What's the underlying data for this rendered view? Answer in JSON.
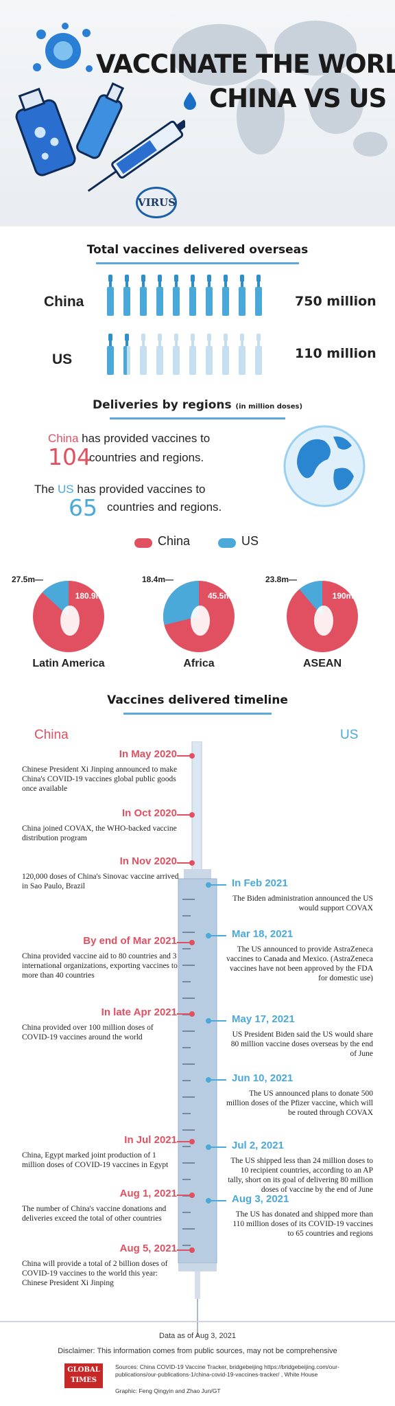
{
  "header": {
    "title_line1": "VACCINATE THE WORLD",
    "title_line2": "CHINA VS US",
    "logo_text": "VIRUS"
  },
  "total": {
    "title": "Total vaccines delivered overseas",
    "china_label": "China",
    "china_amount": "750 million",
    "china_filled": 10,
    "us_label": "US",
    "us_amount": "110 million",
    "us_filled": 1.5
  },
  "regions": {
    "title": "Deliveries by regions",
    "title_unit": "(in million doses)",
    "china_line_name": "China",
    "china_line_rest": "has provided vaccines to",
    "china_count": "104",
    "china_tail": "countries and regions.",
    "us_line_pre": "The",
    "us_line_name": "US",
    "us_line_rest": "has provided vaccines to",
    "us_count": "65",
    "us_tail": "countries and regions.",
    "legend_china": "China",
    "legend_us": "US",
    "china_color": "#e05060",
    "us_color": "#4aa9d9",
    "pies": [
      {
        "name": "Latin America",
        "china": 180.9,
        "us": 27.5,
        "china_label": "180.9m",
        "us_label": "27.5m"
      },
      {
        "name": "Africa",
        "china": 45.5,
        "us": 18.4,
        "china_label": "45.5m",
        "us_label": "18.4m"
      },
      {
        "name": "ASEAN",
        "china": 190,
        "us": 23.8,
        "china_label": "190m",
        "us_label": "23.8m"
      }
    ]
  },
  "timeline": {
    "title": "Vaccines delivered timeline",
    "china_header": "China",
    "us_header": "US",
    "china_events": [
      {
        "date": "In May 2020",
        "desc": "Chinese President Xi Jinping announced to make China's COVID-19 vaccines global public goods once available"
      },
      {
        "date": "In Oct 2020",
        "desc": "China joined COVAX, the WHO-backed vaccine distribution program"
      },
      {
        "date": "In Nov 2020",
        "desc": "120,000 doses of China's Sinovac vaccine arrived in Sao Paulo, Brazil"
      },
      {
        "date": "By end of Mar 2021",
        "desc": "China provided vaccine aid to 80 countries and 3 international organizations, exporting vaccines to more than 40 countries"
      },
      {
        "date": "In late Apr 2021",
        "desc": "China provided over 100 million doses of COVID-19 vaccines around the world"
      },
      {
        "date": "In Jul 2021",
        "desc": "China, Egypt marked joint production of 1 million doses of COVID-19 vaccines in Egypt"
      },
      {
        "date": "Aug 1, 2021",
        "desc": "The number of China's vaccine donations and deliveries exceed the total of other countries"
      },
      {
        "date": "Aug 5, 2021",
        "desc": "China will provide a total of 2 billion doses of COVID-19 vaccines to the world this year: Chinese President Xi Jinping"
      }
    ],
    "us_events": [
      {
        "date": "In Feb 2021",
        "desc": "The Biden administration announced the US would support COVAX"
      },
      {
        "date": "Mar 18, 2021",
        "desc": "The US announced to provide AstraZeneca vaccines to Canada and Mexico. (AstraZeneca vaccines have not been approved by the FDA for domestic use)"
      },
      {
        "date": "May 17, 2021",
        "desc": "US President Biden said the US would share 80 million vaccine doses overseas by the end of June"
      },
      {
        "date": "Jun 10, 2021",
        "desc": "The US announced plans to donate 500 million doses of the Pfizer vaccine, which will be routed through COVAX"
      },
      {
        "date": "Jul 2, 2021",
        "desc": "The US shipped less than 24 million doses to 10 recipient countries, according to an AP tally, short on its goal of delivering 80 million doses of vaccine by the end of June"
      },
      {
        "date": "Aug 3, 2021",
        "desc": "The US has donated and shipped more than 110 million doses of its COVID-19 vaccines to 65 countries and regions"
      }
    ]
  },
  "footer": {
    "data_as_of": "Data as of Aug 3, 2021",
    "disclaimer": "Disclaimer: This information comes from public sources, may not be comprehensive",
    "logo_line1": "GLOBAL",
    "logo_line2": "TIMES",
    "sources": "Sources: China COVID-19 Vaccine Tracker, bridgebeijing https://bridgebeijing.com/our-publications/our-publications-1/china-covid-19-vaccines-tracker/ , White House",
    "graphic": "Graphic: Feng Qingyin and Zhao Jun/GT"
  }
}
